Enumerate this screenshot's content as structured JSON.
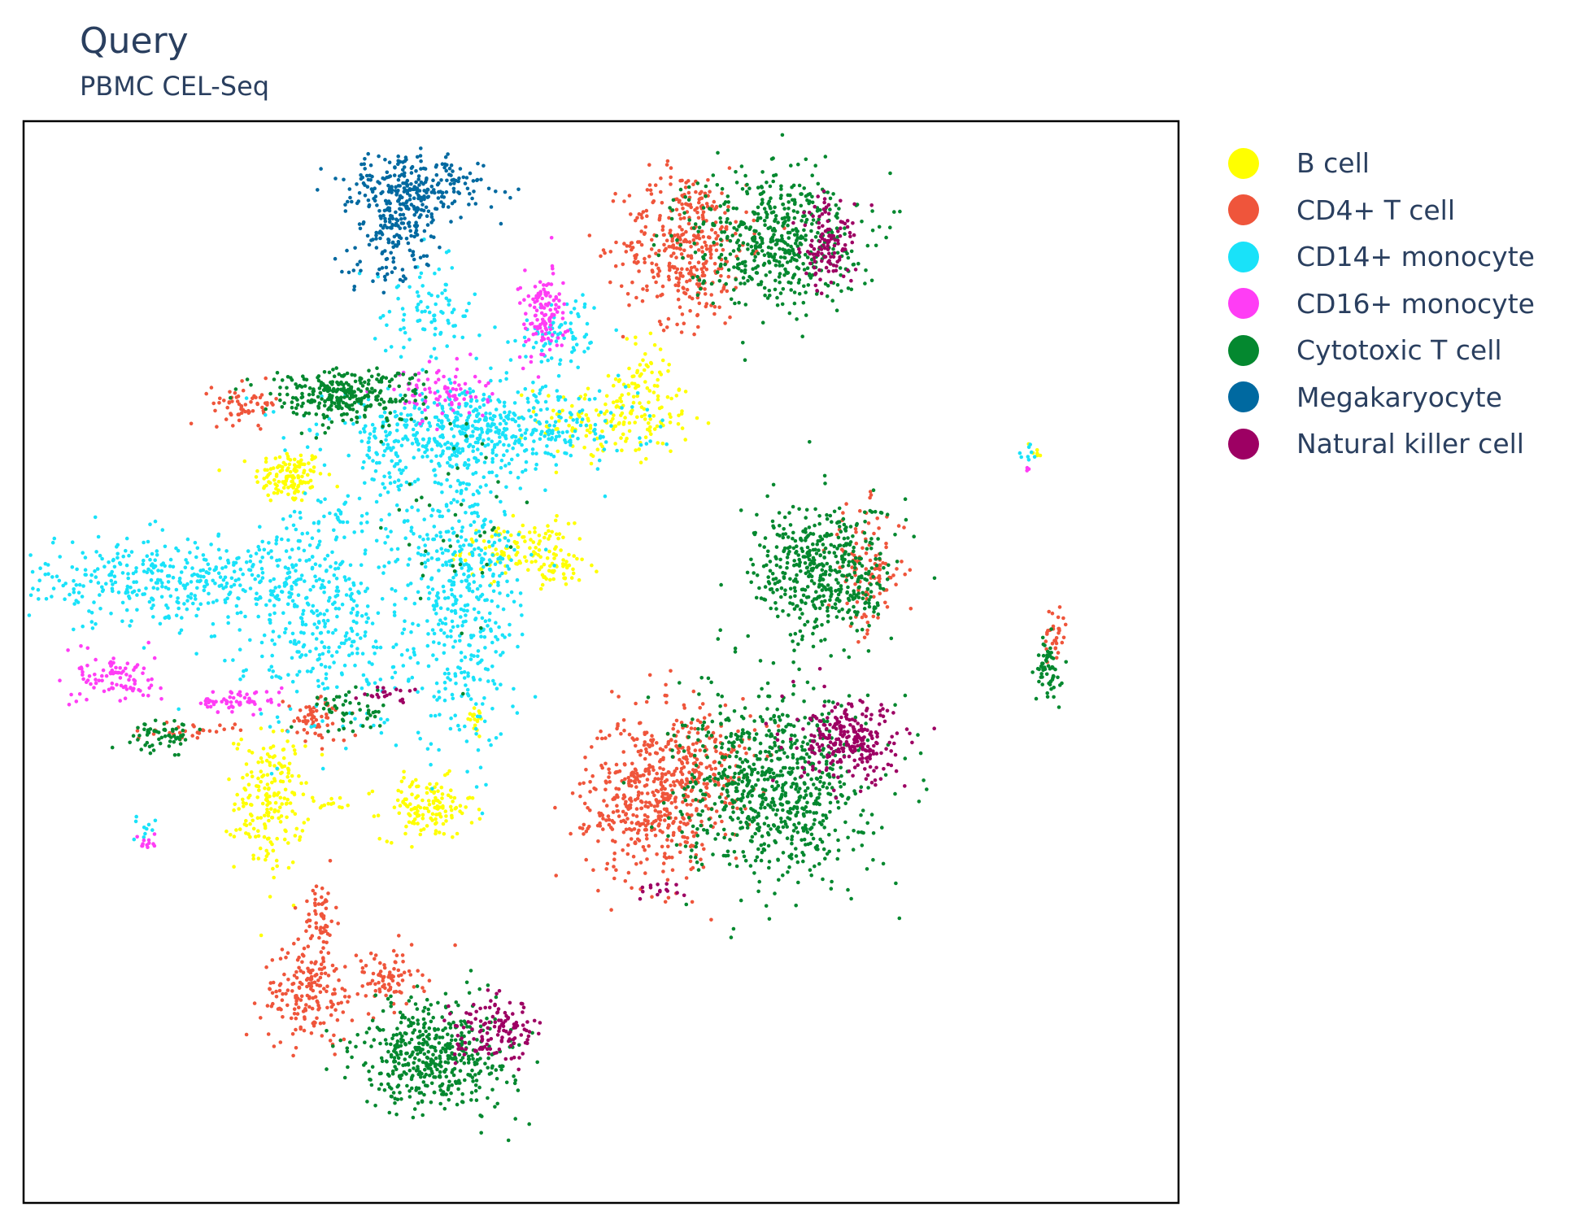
{
  "chart_data": {
    "type": "scatter",
    "title": "Query",
    "subtitle": "PBMC CEL-Seq",
    "xlabel": "",
    "ylabel": "",
    "xlim": [
      -10,
      20
    ],
    "ylim": [
      -12,
      16
    ],
    "grid": false,
    "legend_position": "right",
    "series": [
      {
        "name": "B cell",
        "color": "#ffff00",
        "clusters": [
          {
            "cx": -3.1,
            "cy": 6.8,
            "sx": 0.45,
            "sy": 0.35,
            "n": 130
          },
          {
            "cx": 5.4,
            "cy": 8.3,
            "sx": 1.0,
            "sy": 0.6,
            "n": 170
          },
          {
            "cx": 6.2,
            "cy": 9.5,
            "sx": 0.35,
            "sy": 0.5,
            "n": 40
          },
          {
            "cx": 2.8,
            "cy": 4.9,
            "sx": 0.7,
            "sy": 0.35,
            "n": 110
          },
          {
            "cx": 4.0,
            "cy": 4.4,
            "sx": 0.5,
            "sy": 0.25,
            "n": 40
          },
          {
            "cx": -3.6,
            "cy": -1.6,
            "sx": 0.45,
            "sy": 0.9,
            "n": 200
          },
          {
            "cx": 0.5,
            "cy": -1.8,
            "sx": 0.6,
            "sy": 0.4,
            "n": 140
          },
          {
            "cx": 1.7,
            "cy": 0.6,
            "sx": 0.15,
            "sy": 0.2,
            "n": 20
          },
          {
            "cx": 16.3,
            "cy": 7.5,
            "sx": 0.12,
            "sy": 0.12,
            "n": 6
          },
          {
            "cx": -2.0,
            "cy": -1.7,
            "sx": 0.25,
            "sy": 0.1,
            "n": 10
          }
        ]
      },
      {
        "name": "CD4+ T cell",
        "color": "#ef553b",
        "clusters": [
          {
            "cx": 7.2,
            "cy": 12.8,
            "sx": 0.8,
            "sy": 1.0,
            "n": 380
          },
          {
            "cx": -4.2,
            "cy": 8.7,
            "sx": 0.45,
            "sy": 0.25,
            "n": 60
          },
          {
            "cx": 11.9,
            "cy": 4.4,
            "sx": 0.5,
            "sy": 0.8,
            "n": 110
          },
          {
            "cx": 16.8,
            "cy": 2.7,
            "sx": 0.15,
            "sy": 0.4,
            "n": 30
          },
          {
            "cx": 6.2,
            "cy": -1.5,
            "sx": 0.8,
            "sy": 1.1,
            "n": 420
          },
          {
            "cx": 7.6,
            "cy": -0.7,
            "sx": 0.7,
            "sy": 0.9,
            "n": 200
          },
          {
            "cx": -2.6,
            "cy": -6.6,
            "sx": 0.6,
            "sy": 0.6,
            "n": 180
          },
          {
            "cx": -2.3,
            "cy": -4.6,
            "sx": 0.2,
            "sy": 0.5,
            "n": 60
          },
          {
            "cx": -0.6,
            "cy": -6.2,
            "sx": 0.5,
            "sy": 0.4,
            "n": 80
          },
          {
            "cx": -2.4,
            "cy": 0.5,
            "sx": 0.4,
            "sy": 0.3,
            "n": 60
          },
          {
            "cx": -5.5,
            "cy": 0.2,
            "sx": 0.5,
            "sy": 0.1,
            "n": 30
          },
          {
            "cx": 4.5,
            "cy": -2.3,
            "sx": 0.25,
            "sy": 0.1,
            "n": 10
          }
        ]
      },
      {
        "name": "CD14+ monocyte",
        "color": "#19e2f9",
        "clusters": [
          {
            "cx": 1.8,
            "cy": 8.0,
            "sx": 2.0,
            "sy": 0.5,
            "n": 520
          },
          {
            "cx": -6.0,
            "cy": 4.1,
            "sx": 2.4,
            "sy": 0.55,
            "n": 460
          },
          {
            "cx": -2.0,
            "cy": 2.7,
            "sx": 1.1,
            "sy": 1.3,
            "n": 300
          },
          {
            "cx": 1.5,
            "cy": 3.8,
            "sx": 0.7,
            "sy": 2.0,
            "n": 460
          },
          {
            "cx": 0.5,
            "cy": 11.1,
            "sx": 0.7,
            "sy": 0.6,
            "n": 90
          },
          {
            "cx": 4.0,
            "cy": 10.5,
            "sx": 0.6,
            "sy": 0.5,
            "n": 80
          },
          {
            "cx": -1.4,
            "cy": 5.6,
            "sx": 1.2,
            "sy": 0.4,
            "n": 80
          },
          {
            "cx": -0.5,
            "cy": 7.2,
            "sx": 0.4,
            "sy": 0.5,
            "n": 50
          },
          {
            "cx": -6.9,
            "cy": -2.3,
            "sx": 0.15,
            "sy": 0.2,
            "n": 10
          },
          {
            "cx": 16.0,
            "cy": 7.4,
            "sx": 0.15,
            "sy": 0.1,
            "n": 8
          }
        ]
      },
      {
        "name": "CD16+ monocyte",
        "color": "#ff3df5",
        "clusters": [
          {
            "cx": 3.5,
            "cy": 11.0,
            "sx": 0.3,
            "sy": 0.6,
            "n": 120
          },
          {
            "cx": 0.8,
            "cy": 9.0,
            "sx": 0.6,
            "sy": 0.35,
            "n": 80
          },
          {
            "cx": -7.6,
            "cy": 1.6,
            "sx": 0.5,
            "sy": 0.35,
            "n": 90
          },
          {
            "cx": -4.5,
            "cy": 1.0,
            "sx": 0.6,
            "sy": 0.15,
            "n": 60
          },
          {
            "cx": -6.8,
            "cy": -2.7,
            "sx": 0.12,
            "sy": 0.15,
            "n": 12
          },
          {
            "cx": 16.1,
            "cy": 7.0,
            "sx": 0.05,
            "sy": 0.05,
            "n": 3
          }
        ]
      },
      {
        "name": "Cytotoxic T cell",
        "color": "#04882f",
        "clusters": [
          {
            "cx": 9.5,
            "cy": 13.0,
            "sx": 1.1,
            "sy": 0.9,
            "n": 520
          },
          {
            "cx": -1.7,
            "cy": 8.9,
            "sx": 1.0,
            "sy": 0.35,
            "n": 300
          },
          {
            "cx": 10.8,
            "cy": 4.3,
            "sx": 0.9,
            "sy": 0.9,
            "n": 480
          },
          {
            "cx": 16.6,
            "cy": 1.8,
            "sx": 0.15,
            "sy": 0.4,
            "n": 60
          },
          {
            "cx": 9.5,
            "cy": -1.2,
            "sx": 1.2,
            "sy": 1.2,
            "n": 760
          },
          {
            "cx": 0.7,
            "cy": -8.2,
            "sx": 1.0,
            "sy": 0.7,
            "n": 480
          },
          {
            "cx": -1.5,
            "cy": 0.8,
            "sx": 0.5,
            "sy": 0.3,
            "n": 50
          },
          {
            "cx": -6.4,
            "cy": 0.1,
            "sx": 0.4,
            "sy": 0.2,
            "n": 60
          },
          {
            "cx": 1.5,
            "cy": 5.5,
            "sx": 1.0,
            "sy": 1.5,
            "n": 40
          }
        ]
      },
      {
        "name": "Megakaryocyte",
        "color": "#0069a0",
        "clusters": [
          {
            "cx": 0.1,
            "cy": 14.2,
            "sx": 0.9,
            "sy": 0.5,
            "n": 280
          },
          {
            "cx": -0.4,
            "cy": 13.0,
            "sx": 0.45,
            "sy": 0.6,
            "n": 120
          },
          {
            "cx": -1.5,
            "cy": 12.1,
            "sx": 0.15,
            "sy": 0.25,
            "n": 10
          }
        ]
      },
      {
        "name": "Natural killer cell",
        "color": "#9d0063",
        "clusters": [
          {
            "cx": 10.9,
            "cy": 12.8,
            "sx": 0.35,
            "sy": 0.6,
            "n": 120
          },
          {
            "cx": 11.5,
            "cy": -0.1,
            "sx": 0.7,
            "sy": 0.5,
            "n": 260
          },
          {
            "cx": 2.3,
            "cy": -7.6,
            "sx": 0.55,
            "sy": 0.4,
            "n": 130
          },
          {
            "cx": -0.6,
            "cy": 1.2,
            "sx": 0.4,
            "sy": 0.1,
            "n": 20
          },
          {
            "cx": 6.5,
            "cy": -3.9,
            "sx": 0.35,
            "sy": 0.15,
            "n": 15
          }
        ]
      }
    ]
  }
}
